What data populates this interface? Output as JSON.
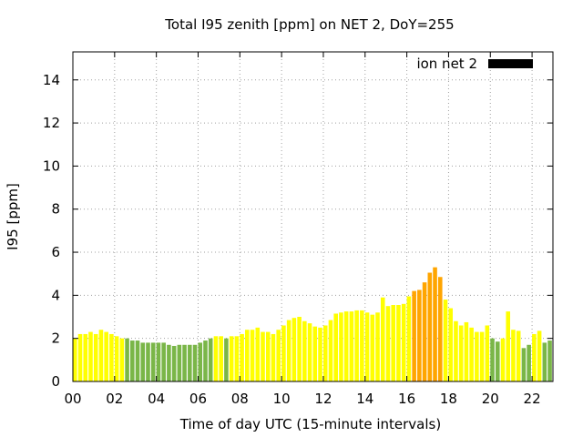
{
  "chart_data": {
    "type": "bar",
    "title": "Total I95 zenith [ppm] on NET 2, DoY=255",
    "xlabel": "Time of day UTC (15-minute intervals)",
    "ylabel": "I95 [ppm]",
    "xlim": [
      0,
      23
    ],
    "ylim": [
      0,
      15.3
    ],
    "x_interval_hours": 0.25,
    "x_tick_labels": [
      "00",
      "02",
      "04",
      "06",
      "08",
      "10",
      "12",
      "14",
      "16",
      "18",
      "20",
      "22"
    ],
    "x_tick_values": [
      0,
      2,
      4,
      6,
      8,
      10,
      12,
      14,
      16,
      18,
      20,
      22
    ],
    "y_ticks": [
      0,
      2,
      4,
      6,
      8,
      10,
      12,
      14
    ],
    "grid": true,
    "legend": {
      "position": "top-right",
      "entries": [
        {
          "name": "ion net 2",
          "color": "#000000"
        }
      ]
    },
    "series": [
      {
        "name": "ion net 2",
        "x_start": 0,
        "values": [
          2.0,
          2.2,
          2.2,
          2.3,
          2.2,
          2.4,
          2.3,
          2.2,
          2.1,
          2.0,
          2.0,
          1.9,
          1.9,
          1.8,
          1.8,
          1.8,
          1.8,
          1.8,
          1.7,
          1.65,
          1.7,
          1.7,
          1.7,
          1.7,
          1.8,
          1.9,
          2.0,
          2.1,
          2.1,
          2.0,
          2.1,
          2.1,
          2.2,
          2.4,
          2.4,
          2.5,
          2.3,
          2.3,
          2.2,
          2.4,
          2.6,
          2.85,
          2.95,
          3.0,
          2.8,
          2.7,
          2.55,
          2.5,
          2.6,
          2.85,
          3.15,
          3.2,
          3.25,
          3.25,
          3.3,
          3.3,
          3.2,
          3.1,
          3.2,
          3.9,
          3.5,
          3.55,
          3.55,
          3.6,
          3.95,
          4.2,
          4.25,
          4.6,
          5.05,
          5.3,
          4.85,
          3.8,
          3.4,
          2.8,
          2.6,
          2.75,
          2.5,
          2.3,
          2.3,
          2.6,
          2.0,
          1.85,
          2.0,
          3.25,
          2.4,
          2.35,
          1.55,
          1.7,
          2.2,
          2.35,
          1.8,
          1.9,
          2.1,
          1.95,
          1.65
        ],
        "colors": [
          "#ffff00",
          "#ffff00",
          "#ffff00",
          "#ffff00",
          "#ffff00",
          "#ffff00",
          "#ffff00",
          "#ffff00",
          "#ffff00",
          "#ffff00",
          "#7ab648",
          "#7ab648",
          "#7ab648",
          "#7ab648",
          "#7ab648",
          "#7ab648",
          "#7ab648",
          "#7ab648",
          "#7ab648",
          "#7ab648",
          "#7ab648",
          "#7ab648",
          "#7ab648",
          "#7ab648",
          "#7ab648",
          "#7ab648",
          "#7ab648",
          "#ffff00",
          "#ffff00",
          "#7ab648",
          "#ffff00",
          "#ffff00",
          "#ffff00",
          "#ffff00",
          "#ffff00",
          "#ffff00",
          "#ffff00",
          "#ffff00",
          "#ffff00",
          "#ffff00",
          "#ffff00",
          "#ffff00",
          "#ffff00",
          "#ffff00",
          "#ffff00",
          "#ffff00",
          "#ffff00",
          "#ffff00",
          "#ffff00",
          "#ffff00",
          "#ffff00",
          "#ffff00",
          "#ffff00",
          "#ffff00",
          "#ffff00",
          "#ffff00",
          "#ffff00",
          "#ffff00",
          "#ffff00",
          "#ffff00",
          "#ffff00",
          "#ffff00",
          "#ffff00",
          "#ffff00",
          "#ffff00",
          "#ffa500",
          "#ffa500",
          "#ffa500",
          "#ffa500",
          "#ffa500",
          "#ffa500",
          "#ffff00",
          "#ffff00",
          "#ffff00",
          "#ffff00",
          "#ffff00",
          "#ffff00",
          "#ffff00",
          "#ffff00",
          "#ffff00",
          "#7ab648",
          "#7ab648",
          "#ffff00",
          "#ffff00",
          "#ffff00",
          "#ffff00",
          "#7ab648",
          "#7ab648",
          "#ffff00",
          "#ffff00",
          "#7ab648",
          "#7ab648",
          "#ffff00",
          "#7ab648",
          "#7ab648"
        ]
      }
    ]
  }
}
